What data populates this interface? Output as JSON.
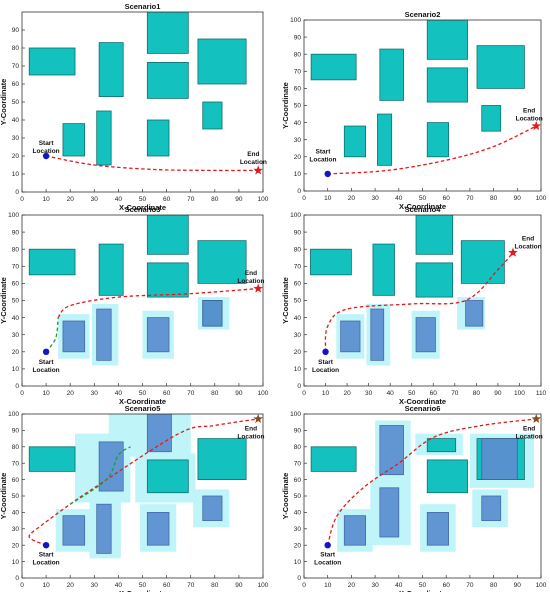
{
  "figure": {
    "xlabel": "X-Coordinate",
    "ylabel": "Y-Coordinate",
    "start_label": [
      "Start",
      "Location"
    ],
    "end_label": [
      "End",
      "Location"
    ]
  },
  "colors": {
    "obstacle": "#13c2bf",
    "obstacle_edge": "#0f6f6c",
    "inflated": "#bff5f8",
    "inner": "#5b8ed0",
    "red_path": "#e31a1c",
    "green_path": "#1b9e3a",
    "start": "#1515c8",
    "end_star": "#e31a1c",
    "end_star_dark": "#8a4a1a"
  },
  "chart_data": [
    {
      "type": "scatter",
      "title": "Scenario1",
      "xlim": [
        0,
        100
      ],
      "ylim": [
        0,
        100
      ],
      "xticks": [
        0,
        10,
        20,
        30,
        40,
        50,
        60,
        70,
        80,
        90,
        100
      ],
      "yticks": [
        0,
        10,
        20,
        30,
        40,
        50,
        60,
        70,
        80,
        90
      ],
      "obstacles": [
        [
          3,
          65,
          22,
          80
        ],
        [
          32,
          53,
          42,
          83
        ],
        [
          52,
          77,
          69,
          100
        ],
        [
          52,
          52,
          69,
          72
        ],
        [
          73,
          60,
          93,
          85
        ],
        [
          75,
          35,
          83,
          50
        ],
        [
          17,
          20,
          26,
          38
        ],
        [
          31,
          15,
          37,
          45
        ],
        [
          52,
          20,
          61,
          40
        ]
      ],
      "inflated": [],
      "start": [
        10,
        20
      ],
      "end": [
        98,
        12
      ],
      "start_label_at": [
        10,
        26
      ],
      "end_label_at": [
        96,
        20
      ],
      "path_red": [
        [
          10,
          20
        ],
        [
          30,
          15
        ],
        [
          55,
          12.5
        ],
        [
          80,
          12
        ],
        [
          98,
          12
        ]
      ],
      "path_green": []
    },
    {
      "type": "scatter",
      "title": "Scenario2",
      "xlim": [
        0,
        100
      ],
      "ylim": [
        0,
        100
      ],
      "xticks": [
        0,
        10,
        20,
        30,
        40,
        50,
        60,
        70,
        80,
        90,
        100
      ],
      "yticks": [
        0,
        10,
        20,
        30,
        40,
        50,
        60,
        70,
        80,
        90,
        100
      ],
      "obstacles": [
        [
          3,
          65,
          22,
          80
        ],
        [
          32,
          53,
          42,
          83
        ],
        [
          52,
          77,
          69,
          100
        ],
        [
          52,
          52,
          69,
          72
        ],
        [
          73,
          60,
          93,
          85
        ],
        [
          75,
          35,
          83,
          50
        ],
        [
          17,
          20,
          26,
          38
        ],
        [
          31,
          15,
          37,
          45
        ],
        [
          52,
          20,
          61,
          40
        ]
      ],
      "inflated": [],
      "start": [
        10,
        10
      ],
      "end": [
        98,
        38
      ],
      "start_label_at": [
        8,
        22
      ],
      "end_label_at": [
        95,
        46
      ],
      "path_red": [
        [
          10,
          10
        ],
        [
          35,
          12
        ],
        [
          60,
          18
        ],
        [
          80,
          26
        ],
        [
          98,
          38
        ]
      ],
      "path_green": []
    },
    {
      "type": "scatter",
      "title": "Scenario3",
      "xlim": [
        0,
        100
      ],
      "ylim": [
        0,
        100
      ],
      "xticks": [
        0,
        10,
        20,
        30,
        40,
        50,
        60,
        70,
        80,
        90,
        100
      ],
      "yticks": [
        0,
        10,
        20,
        30,
        40,
        50,
        60,
        70,
        80,
        90,
        100
      ],
      "obstacles": [
        [
          3,
          65,
          22,
          80
        ],
        [
          32,
          53,
          42,
          83
        ],
        [
          52,
          77,
          69,
          100
        ],
        [
          52,
          52,
          69,
          72
        ],
        [
          73,
          60,
          93,
          85
        ],
        [
          75,
          35,
          83,
          50
        ]
      ],
      "inflated": [
        [
          15,
          16,
          28,
          42
        ],
        [
          29,
          12,
          40,
          48
        ],
        [
          50,
          16,
          63,
          44
        ],
        [
          73,
          33,
          86,
          52
        ]
      ],
      "inner": [
        [
          17,
          20,
          26,
          38
        ],
        [
          31,
          15,
          37,
          45
        ],
        [
          52,
          20,
          61,
          40
        ],
        [
          75,
          35,
          83,
          50
        ]
      ],
      "start": [
        10,
        20
      ],
      "end": [
        98,
        57
      ],
      "start_label_at": [
        10,
        13
      ],
      "end_label_at": [
        95,
        65
      ],
      "path_red": [
        [
          15,
          40
        ],
        [
          20,
          47
        ],
        [
          40,
          52
        ],
        [
          70,
          54
        ],
        [
          98,
          57
        ]
      ],
      "path_green": [
        [
          10,
          20
        ],
        [
          14,
          28
        ],
        [
          15,
          40
        ]
      ]
    },
    {
      "type": "scatter",
      "title": "Scenario4",
      "xlim": [
        0,
        110
      ],
      "ylim": [
        0,
        100
      ],
      "xticks": [
        0,
        10,
        20,
        30,
        40,
        50,
        60,
        70,
        80,
        90,
        100,
        110
      ],
      "yticks": [
        0,
        10,
        20,
        30,
        40,
        50,
        60,
        70,
        80,
        90,
        100
      ],
      "obstacles": [
        [
          3,
          65,
          22,
          80
        ],
        [
          32,
          53,
          42,
          83
        ],
        [
          52,
          77,
          69,
          100
        ],
        [
          52,
          52,
          69,
          72
        ],
        [
          73,
          60,
          93,
          85
        ]
      ],
      "inflated": [
        [
          15,
          16,
          28,
          42
        ],
        [
          29,
          12,
          40,
          48
        ],
        [
          50,
          16,
          63,
          44
        ],
        [
          71,
          33,
          84,
          52
        ]
      ],
      "inner": [
        [
          17,
          20,
          26,
          38
        ],
        [
          31,
          15,
          37,
          45
        ],
        [
          52,
          20,
          61,
          40
        ],
        [
          75,
          35,
          83,
          50
        ]
      ],
      "start": [
        10,
        20
      ],
      "end": [
        97,
        78
      ],
      "start_label_at": [
        10,
        13
      ],
      "end_label_at": [
        104,
        85
      ],
      "path_red": [
        [
          10,
          20
        ],
        [
          11,
          35
        ],
        [
          20,
          45
        ],
        [
          50,
          48
        ],
        [
          75,
          50
        ],
        [
          90,
          68
        ],
        [
          97,
          78
        ]
      ],
      "path_green": []
    },
    {
      "type": "scatter",
      "title": "Scenario5",
      "xlim": [
        0,
        100
      ],
      "ylim": [
        0,
        100
      ],
      "xticks": [
        0,
        10,
        20,
        30,
        40,
        50,
        60,
        70,
        80,
        90,
        100
      ],
      "yticks": [
        0,
        10,
        20,
        30,
        40,
        50,
        60,
        70,
        80,
        90,
        100
      ],
      "obstacles": [
        [
          3,
          65,
          22,
          80
        ],
        [
          52,
          52,
          69,
          72
        ],
        [
          73,
          60,
          93,
          85
        ]
      ],
      "inflated": [
        [
          14,
          16,
          29,
          42
        ],
        [
          28,
          12,
          41,
          48
        ],
        [
          49,
          16,
          64,
          45
        ],
        [
          71,
          31,
          86,
          54
        ],
        [
          22,
          46,
          45,
          88
        ],
        [
          36,
          74,
          70,
          100
        ],
        [
          47,
          46,
          72,
          76
        ]
      ],
      "inner": [
        [
          17,
          20,
          26,
          38
        ],
        [
          31,
          15,
          37,
          45
        ],
        [
          52,
          20,
          61,
          40
        ],
        [
          75,
          35,
          83,
          50
        ],
        [
          32,
          53,
          42,
          83
        ],
        [
          52,
          77,
          62,
          100
        ]
      ],
      "start": [
        10,
        20
      ],
      "end": [
        98,
        97
      ],
      "start_label_at": [
        10,
        13
      ],
      "end_label_at": [
        95,
        90
      ],
      "path_red": [
        [
          10,
          20
        ],
        [
          3,
          25
        ],
        [
          8,
          32
        ],
        [
          20,
          45
        ],
        [
          30,
          55
        ],
        [
          65,
          88
        ],
        [
          80,
          93
        ],
        [
          98,
          97
        ]
      ],
      "path_green": [
        [
          20,
          45
        ],
        [
          35,
          60
        ],
        [
          40,
          75
        ],
        [
          45,
          80
        ]
      ]
    },
    {
      "type": "scatter",
      "title": "Scenario6",
      "xlim": [
        0,
        100
      ],
      "ylim": [
        0,
        100
      ],
      "xticks": [
        0,
        10,
        20,
        30,
        40,
        50,
        60,
        70,
        80,
        90,
        100
      ],
      "yticks": [
        0,
        10,
        20,
        30,
        40,
        50,
        60,
        70,
        80,
        90,
        100
      ],
      "obstacles": [
        [
          3,
          65,
          22,
          80
        ],
        [
          52,
          52,
          69,
          72
        ],
        [
          73,
          60,
          93,
          85
        ],
        [
          52,
          77,
          64,
          85
        ]
      ],
      "inflated": [
        [
          14,
          16,
          29,
          42
        ],
        [
          28,
          20,
          45,
          60
        ],
        [
          49,
          16,
          64,
          45
        ],
        [
          71,
          31,
          86,
          54
        ],
        [
          30,
          60,
          45,
          96
        ],
        [
          70,
          55,
          97,
          88
        ],
        [
          47,
          75,
          67,
          88
        ]
      ],
      "inner": [
        [
          17,
          20,
          26,
          38
        ],
        [
          32,
          25,
          40,
          55
        ],
        [
          52,
          20,
          61,
          40
        ],
        [
          75,
          35,
          83,
          50
        ],
        [
          32,
          63,
          42,
          93
        ],
        [
          75,
          60,
          90,
          85
        ]
      ],
      "start": [
        10,
        20
      ],
      "end": [
        98,
        97
      ],
      "start_label_at": [
        10,
        13
      ],
      "end_label_at": [
        95,
        90
      ],
      "path_red": [
        [
          10,
          20
        ],
        [
          14,
          38
        ],
        [
          25,
          55
        ],
        [
          40,
          70
        ],
        [
          55,
          86
        ],
        [
          75,
          93
        ],
        [
          98,
          97
        ]
      ],
      "path_green": []
    }
  ]
}
